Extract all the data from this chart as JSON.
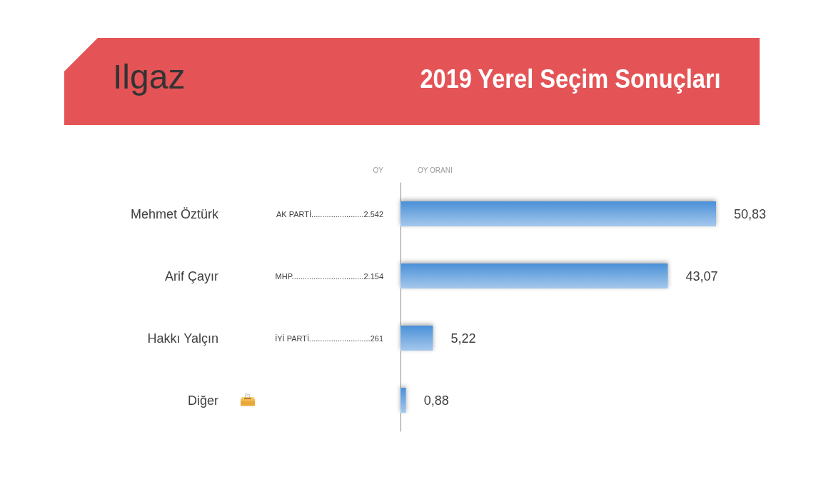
{
  "chart_data": {
    "type": "bar",
    "orientation": "horizontal",
    "title": "Ilgaz",
    "subtitle": "2019 Yerel Seçim Sonuçları",
    "categories": [
      "Mehmet Öztürk",
      "Arif Çayır",
      "Hakkı Yalçın",
      "Diğer"
    ],
    "values": [
      50.83,
      43.07,
      5.22,
      0.88
    ],
    "value_labels": [
      "50,83",
      "43,07",
      "5,22",
      "0,88"
    ],
    "color": "#4a90d8",
    "annotations": [
      "OY",
      "OY ORANI",
      "AK PARTİ........................2.542",
      "MHP.................................2.154",
      "İYİ PARTİ............................261"
    ],
    "grid": false,
    "tick_labels": "y"
  }
}
